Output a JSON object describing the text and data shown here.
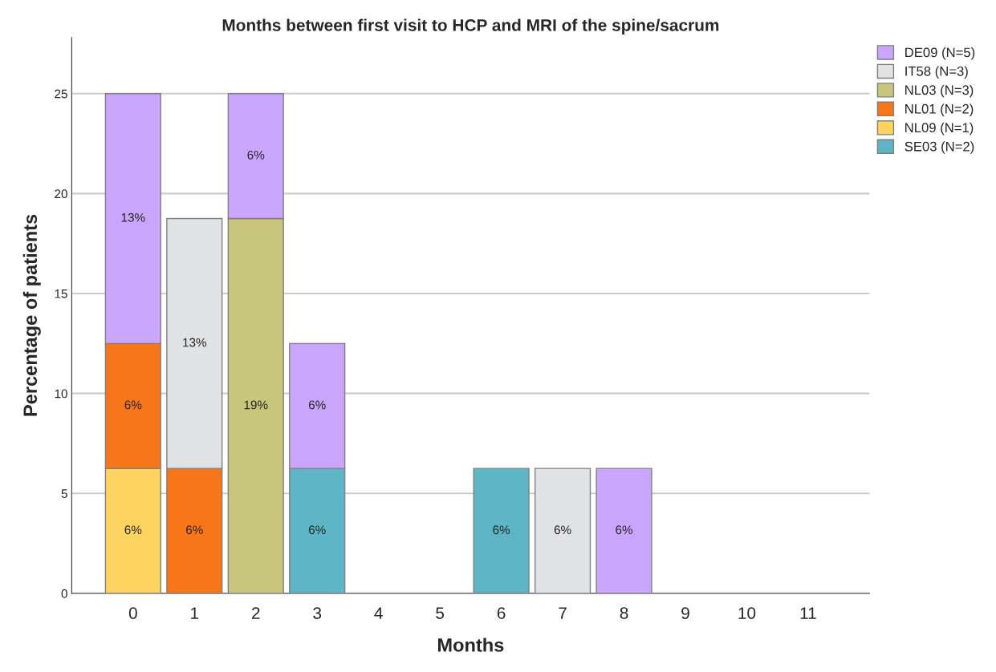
{
  "chart_data": {
    "type": "bar",
    "title": "Months between first visit to HCP and MRI of the spine/sacrum",
    "xlabel": "Months",
    "ylabel": "Percentage of patients",
    "categories": [
      "0",
      "1",
      "2",
      "3",
      "4",
      "5",
      "6",
      "7",
      "8",
      "9",
      "10",
      "11"
    ],
    "stacked": true,
    "ylim": [
      0,
      27.8
    ],
    "yticks": [
      0,
      5,
      10,
      15,
      20,
      25
    ],
    "grid": "y",
    "legend": "top right",
    "series": [
      {
        "name": "SE03 (N=2)",
        "color": "#5db5c6",
        "values": [
          null,
          null,
          null,
          6.25,
          null,
          null,
          6.25,
          null,
          null,
          null,
          null,
          null
        ],
        "value_labels": [
          null,
          null,
          null,
          "6%",
          null,
          null,
          "6%",
          null,
          null,
          null,
          null,
          null
        ]
      },
      {
        "name": "NL09 (N=1)",
        "color": "#fed35f",
        "values": [
          6.25,
          null,
          null,
          null,
          null,
          null,
          null,
          null,
          null,
          null,
          null,
          null
        ],
        "value_labels": [
          "6%",
          null,
          null,
          null,
          null,
          null,
          null,
          null,
          null,
          null,
          null,
          null
        ]
      },
      {
        "name": "NL01 (N=2)",
        "color": "#f8761a",
        "values": [
          6.25,
          6.25,
          null,
          null,
          null,
          null,
          null,
          null,
          null,
          null,
          null,
          null
        ],
        "value_labels": [
          "6%",
          "6%",
          null,
          null,
          null,
          null,
          null,
          null,
          null,
          null,
          null,
          null
        ]
      },
      {
        "name": "NL03 (N=3)",
        "color": "#c8c67c",
        "values": [
          null,
          null,
          18.75,
          null,
          null,
          null,
          null,
          null,
          null,
          null,
          null,
          null
        ],
        "value_labels": [
          null,
          null,
          "19%",
          null,
          null,
          null,
          null,
          null,
          null,
          null,
          null,
          null
        ]
      },
      {
        "name": "IT58 (N=3)",
        "color": "#e1e2e4",
        "values": [
          null,
          12.5,
          null,
          null,
          null,
          null,
          null,
          6.25,
          null,
          null,
          null,
          null
        ],
        "value_labels": [
          null,
          "13%",
          null,
          null,
          null,
          null,
          null,
          "6%",
          null,
          null,
          null,
          null
        ]
      },
      {
        "name": "DE09 (N=5)",
        "color": "#c9a6fb",
        "values": [
          12.5,
          null,
          6.25,
          6.25,
          null,
          null,
          null,
          null,
          6.25,
          null,
          null,
          null
        ],
        "value_labels": [
          "13%",
          null,
          "6%",
          "6%",
          null,
          null,
          null,
          null,
          "6%",
          null,
          null,
          null
        ]
      }
    ]
  }
}
